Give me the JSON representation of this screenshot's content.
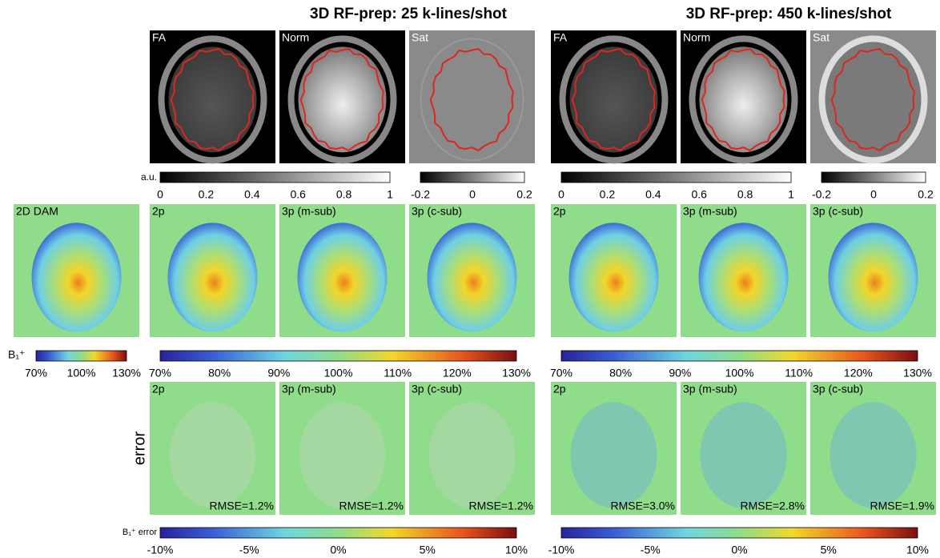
{
  "titles": [
    "3D RF-prep: 25 k-lines/shot",
    "3D RF-prep: 450 k-lines/shot"
  ],
  "reference": {
    "label": "2D DAM",
    "colorbar_label": "B₁⁺",
    "ticks": [
      "70%",
      "100%",
      "130%"
    ]
  },
  "error_row_label": "error",
  "error_colorbar_label": "B₁⁺ error",
  "au_label": "a.u.",
  "columns": [
    {
      "anatomy": [
        "FA",
        "Norm",
        "Sat"
      ],
      "norm_ticks": [
        "0",
        "0.2",
        "0.4",
        "0.6",
        "0.8",
        "1"
      ],
      "sat_ticks": [
        "-0.2",
        "0",
        "0.2"
      ],
      "b1_panels": [
        "2p",
        "3p (m-sub)",
        "3p (c-sub)"
      ],
      "b1_ticks": [
        "70%",
        "80%",
        "90%",
        "100%",
        "110%",
        "120%",
        "130%"
      ],
      "error_panels": [
        {
          "label": "2p",
          "rmse": "RMSE=1.2%"
        },
        {
          "label": "3p (m-sub)",
          "rmse": "RMSE=1.2%"
        },
        {
          "label": "3p (c-sub)",
          "rmse": "RMSE=1.2%"
        }
      ],
      "error_ticks": [
        "-10%",
        "-5%",
        "0%",
        "5%",
        "10%"
      ]
    },
    {
      "anatomy": [
        "FA",
        "Norm",
        "Sat"
      ],
      "norm_ticks": [
        "0",
        "0.2",
        "0.4",
        "0.6",
        "0.8",
        "1"
      ],
      "sat_ticks": [
        "-0.2",
        "0",
        "0.2"
      ],
      "b1_panels": [
        "2p",
        "3p (m-sub)",
        "3p (c-sub)"
      ],
      "b1_ticks": [
        "70%",
        "80%",
        "90%",
        "100%",
        "110%",
        "120%",
        "130%"
      ],
      "error_panels": [
        {
          "label": "2p",
          "rmse": "RMSE=3.0%"
        },
        {
          "label": "3p (m-sub)",
          "rmse": "RMSE=2.8%"
        },
        {
          "label": "3p (c-sub)",
          "rmse": "RMSE=1.9%"
        }
      ],
      "error_ticks": [
        "-10%",
        "-5%",
        "0%",
        "5%",
        "10%"
      ]
    }
  ]
}
